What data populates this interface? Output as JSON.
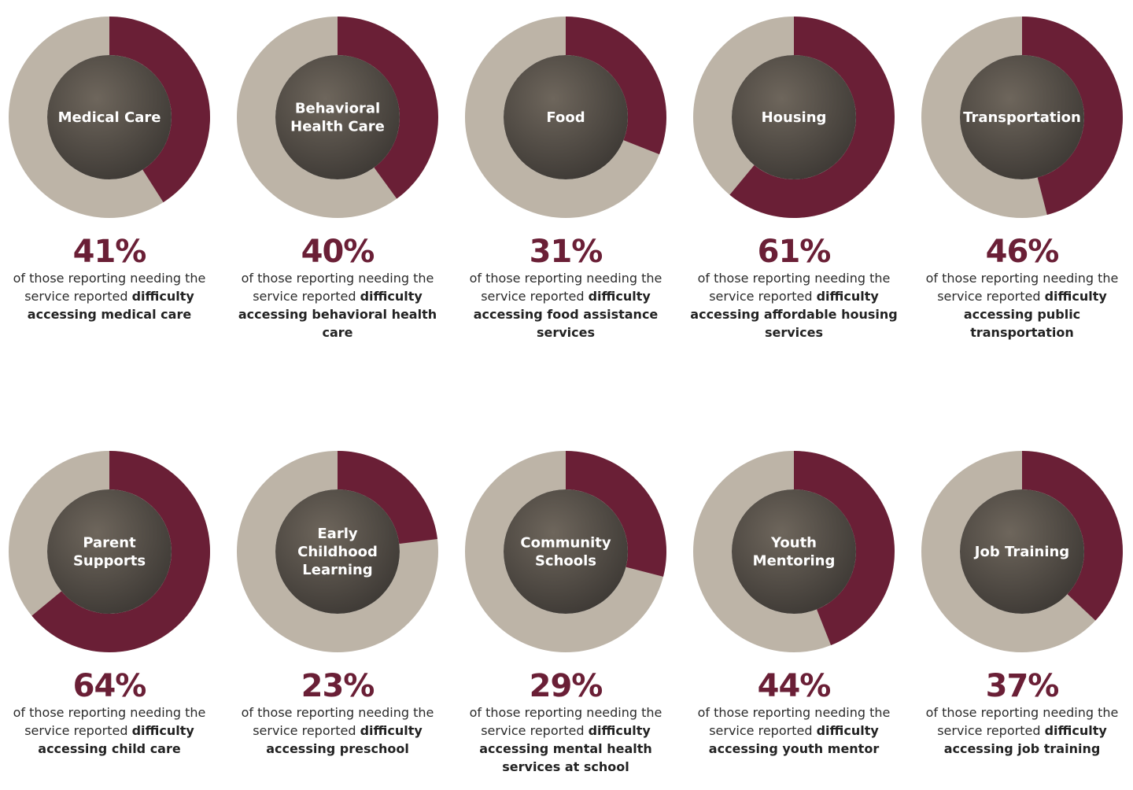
{
  "colors": {
    "filled": "#6a1f36",
    "remainder": "#bdb4a7",
    "photo_dark": "#3a3632",
    "photo_mid": "#6e665c"
  },
  "chart_data": {
    "type": "pie",
    "variant": "donut-small-multiples",
    "items": [
      {
        "label_lines": [
          "Medical Care"
        ],
        "value": 41,
        "pct_label": "41%",
        "lead": "of those reporting needing the service reported",
        "bold": "difficulty accessing medical care"
      },
      {
        "label_lines": [
          "Behavioral",
          "Health Care"
        ],
        "value": 40,
        "pct_label": "40%",
        "lead": "of those reporting needing the service reported",
        "bold": "difficulty accessing behavioral health care"
      },
      {
        "label_lines": [
          "Food"
        ],
        "value": 31,
        "pct_label": "31%",
        "lead": "of those reporting needing the service reported",
        "bold": "difficulty accessing food assistance services"
      },
      {
        "label_lines": [
          "Housing"
        ],
        "value": 61,
        "pct_label": "61%",
        "lead": "of those reporting needing the service reported",
        "bold": "difficulty accessing affordable housing services"
      },
      {
        "label_lines": [
          "Transportation"
        ],
        "value": 46,
        "pct_label": "46%",
        "lead": "of those reporting needing the service reported",
        "bold": "difficulty accessing public transportation"
      },
      {
        "label_lines": [
          "Parent",
          "Supports"
        ],
        "value": 64,
        "pct_label": "64%",
        "lead": "of those reporting needing the service reported",
        "bold": "difficulty accessing child care"
      },
      {
        "label_lines": [
          "Early",
          "Childhood",
          "Learning"
        ],
        "value": 23,
        "pct_label": "23%",
        "lead": "of those reporting needing the service reported",
        "bold": "difficulty accessing preschool"
      },
      {
        "label_lines": [
          "Community",
          "Schools"
        ],
        "value": 29,
        "pct_label": "29%",
        "lead": "of those reporting needing the service reported",
        "bold": "difficulty accessing mental health services at school"
      },
      {
        "label_lines": [
          "Youth",
          "Mentoring"
        ],
        "value": 44,
        "pct_label": "44%",
        "lead": "of those reporting needing the service reported",
        "bold": "difficulty accessing youth mentor"
      },
      {
        "label_lines": [
          "Job Training"
        ],
        "value": 37,
        "pct_label": "37%",
        "lead": "of those reporting needing the service reported",
        "bold": "difficulty accessing job training"
      }
    ]
  }
}
